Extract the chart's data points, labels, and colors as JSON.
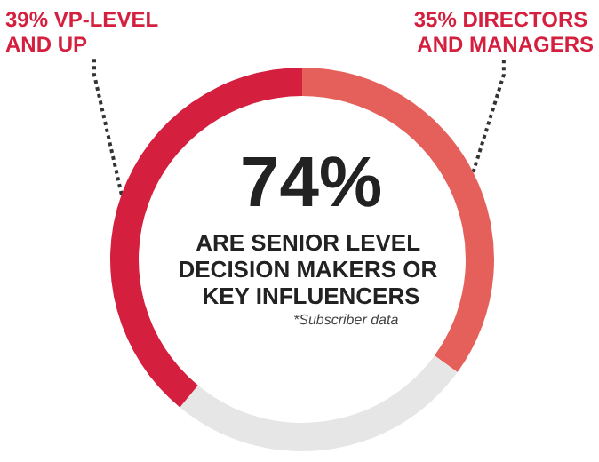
{
  "chart_data": {
    "type": "donut",
    "title": "74%",
    "subtitle": "ARE SENIOR LEVEL DECISION MAKERS OR KEY INFLUENCERS",
    "annotations": [
      "*Subscriber data"
    ],
    "categories": [
      "35% DIRECTORS AND MANAGERS",
      null,
      "39% VP-LEVEL AND UP"
    ],
    "values": [
      35,
      26,
      39
    ],
    "colors": [
      "#e5605a",
      "#e6e6e6",
      "#d41f3e"
    ]
  }
}
